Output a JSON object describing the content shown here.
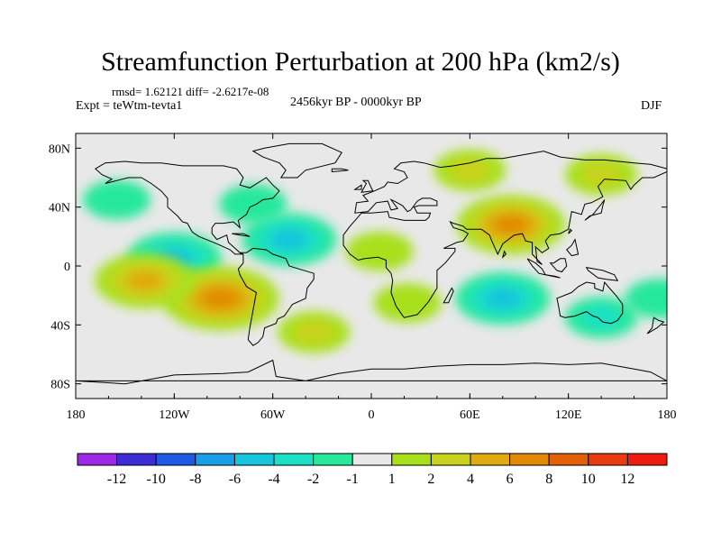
{
  "title": "Streamfunction Perturbation at 200 hPa (km2/s)",
  "stats": "rmsd= 1.62121  diff= -2.6217e-08",
  "experiment": "Expt = teWtm-tevta1",
  "period": "2456kyr BP - 0000kyr BP",
  "season": "DJF",
  "chart_data": {
    "type": "heatmap",
    "projection": "cylindrical-equidistant",
    "xlim": [
      -180,
      180
    ],
    "ylim": [
      -90,
      90
    ],
    "x_ticks": [
      {
        "value": -180,
        "label": "180"
      },
      {
        "value": -120,
        "label": "120W"
      },
      {
        "value": -60,
        "label": "60W"
      },
      {
        "value": 0,
        "label": "0"
      },
      {
        "value": 60,
        "label": "60E"
      },
      {
        "value": 120,
        "label": "120E"
      },
      {
        "value": 180,
        "label": "180"
      }
    ],
    "y_ticks": [
      {
        "value": 80,
        "label": "80N"
      },
      {
        "value": 40,
        "label": "40N"
      },
      {
        "value": 0,
        "label": "0"
      },
      {
        "value": -40,
        "label": "40S"
      },
      {
        "value": -80,
        "label": "80S"
      }
    ],
    "colorbar": {
      "levels": [
        -12,
        -10,
        -8,
        -6,
        -4,
        -2,
        -1,
        1,
        2,
        4,
        6,
        8,
        10,
        12
      ],
      "level_labels": [
        "-12",
        "-10",
        "-8",
        "-6",
        "-4",
        "-2",
        "-1",
        "1",
        "2",
        "4",
        "6",
        "8",
        "10",
        "12"
      ],
      "colors": [
        "#9a28e6",
        "#3c2cd6",
        "#1e5ae6",
        "#1a9ee8",
        "#16c4dc",
        "#1ce0c4",
        "#28e89c",
        "#e8e8e8",
        "#a8e01c",
        "#c8d21c",
        "#e0aa10",
        "#e08a06",
        "#e26008",
        "#e83c10",
        "#ee1c10"
      ]
    },
    "anomalies": [
      {
        "lon": -155,
        "lat": 45,
        "value": -1.5
      },
      {
        "lon": -72,
        "lat": 42,
        "value": -1.5
      },
      {
        "lon": -120,
        "lat": 5,
        "value": -4.5
      },
      {
        "lon": -50,
        "lat": 18,
        "value": -4.5
      },
      {
        "lon": -92,
        "lat": -22,
        "value": 7
      },
      {
        "lon": -138,
        "lat": -10,
        "value": 5
      },
      {
        "lon": -35,
        "lat": -45,
        "value": 2
      },
      {
        "lon": 5,
        "lat": 10,
        "value": 1.5
      },
      {
        "lon": 22,
        "lat": -25,
        "value": 1.5
      },
      {
        "lon": 85,
        "lat": 28,
        "value": 6
      },
      {
        "lon": 60,
        "lat": 65,
        "value": 2
      },
      {
        "lon": 140,
        "lat": 62,
        "value": 2
      },
      {
        "lon": 80,
        "lat": -22,
        "value": -4.5
      },
      {
        "lon": 140,
        "lat": -35,
        "value": -2
      },
      {
        "lon": 175,
        "lat": -22,
        "value": -1.5
      }
    ]
  }
}
